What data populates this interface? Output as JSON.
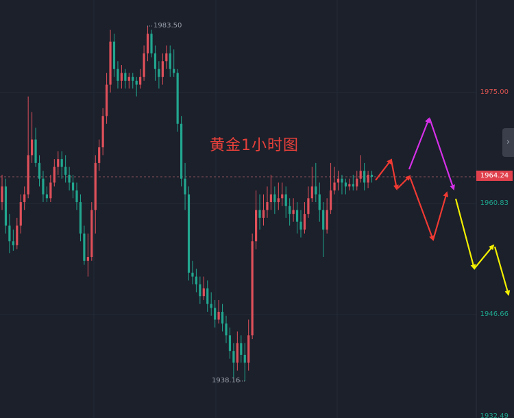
{
  "chart_data": {
    "type": "candlestick",
    "title": "黄金1小时图",
    "xlabel": "",
    "ylabel": "",
    "ylim": [
      1932.49,
      1989.0
    ],
    "grid": true,
    "y_ticks": [
      "1975.00",
      "1960.83",
      "1946.66",
      "1932.49"
    ],
    "current_price": "1964.24",
    "high_label": "1983.50",
    "low_label": "1938.16",
    "ohlc": [
      [
        1961,
        1964.5,
        1960,
        1963
      ],
      [
        1963,
        1964,
        1957,
        1958
      ],
      [
        1958,
        1959.5,
        1954.5,
        1956
      ],
      [
        1956,
        1957.5,
        1954.8,
        1955.5
      ],
      [
        1955.5,
        1959,
        1955,
        1958
      ],
      [
        1958,
        1962,
        1957,
        1961
      ],
      [
        1961,
        1963,
        1960,
        1962
      ],
      [
        1962,
        1974.5,
        1961.5,
        1967
      ],
      [
        1967,
        1972.5,
        1966,
        1969
      ],
      [
        1969,
        1970.5,
        1965.5,
        1966
      ],
      [
        1966,
        1967,
        1963,
        1964
      ],
      [
        1964,
        1965,
        1961,
        1962
      ],
      [
        1962,
        1963,
        1961,
        1961.5
      ],
      [
        1961.5,
        1964.5,
        1961,
        1963.5
      ],
      [
        1963.5,
        1966.5,
        1963,
        1965.5
      ],
      [
        1965.5,
        1967.5,
        1964.5,
        1966.5
      ],
      [
        1966.5,
        1967.5,
        1964,
        1965.5
      ],
      [
        1965.5,
        1967,
        1963.5,
        1964.5
      ],
      [
        1964.5,
        1965.5,
        1962.5,
        1963.5
      ],
      [
        1963.5,
        1964.5,
        1961.5,
        1962.5
      ],
      [
        1962.5,
        1963.5,
        1960,
        1961
      ],
      [
        1961,
        1962,
        1956,
        1957
      ],
      [
        1957,
        1958,
        1953,
        1953.5
      ],
      [
        1953.5,
        1957,
        1951.5,
        1954
      ],
      [
        1954,
        1961,
        1953.5,
        1960
      ],
      [
        1960,
        1967,
        1957,
        1966
      ],
      [
        1966,
        1969,
        1965,
        1968
      ],
      [
        1968,
        1973,
        1967,
        1972
      ],
      [
        1972,
        1977.5,
        1971,
        1976
      ],
      [
        1976,
        1983,
        1975,
        1981.5
      ],
      [
        1981.5,
        1982.5,
        1977,
        1978
      ],
      [
        1978,
        1979,
        1975.5,
        1976.5
      ],
      [
        1976.5,
        1978.5,
        1975.5,
        1977.5
      ],
      [
        1977.5,
        1978,
        1975.5,
        1976.5
      ],
      [
        1976.5,
        1977.5,
        1975.5,
        1977
      ],
      [
        1977,
        1977.5,
        1975.5,
        1976.5
      ],
      [
        1976.5,
        1977,
        1974.5,
        1976
      ],
      [
        1976,
        1978,
        1975.5,
        1977
      ],
      [
        1977,
        1981,
        1976.5,
        1980
      ],
      [
        1980,
        1983.5,
        1979,
        1982.5
      ],
      [
        1982.5,
        1983,
        1979.5,
        1980
      ],
      [
        1980,
        1981,
        1976.5,
        1978
      ],
      [
        1978,
        1979,
        1975.5,
        1977
      ],
      [
        1977,
        1980,
        1976,
        1979
      ],
      [
        1979,
        1981,
        1978,
        1980
      ],
      [
        1980,
        1981,
        1977,
        1978
      ],
      [
        1978,
        1980.5,
        1977,
        1977.5
      ],
      [
        1977.5,
        1978,
        1970,
        1971
      ],
      [
        1971,
        1972,
        1963,
        1964
      ],
      [
        1964,
        1966,
        1960,
        1962
      ],
      [
        1962,
        1963,
        1951,
        1952
      ],
      [
        1952,
        1953.5,
        1950.5,
        1951.5
      ],
      [
        1951.5,
        1952.5,
        1949.5,
        1950.5
      ],
      [
        1950.5,
        1951.5,
        1948,
        1949
      ],
      [
        1949,
        1951.5,
        1948.5,
        1950
      ],
      [
        1950,
        1951,
        1947,
        1948
      ],
      [
        1948,
        1949.5,
        1946.5,
        1947.5
      ],
      [
        1947.5,
        1948.5,
        1945,
        1946
      ],
      [
        1946,
        1948.5,
        1945.5,
        1947
      ],
      [
        1947,
        1948,
        1944.5,
        1945.5
      ],
      [
        1945.5,
        1946.5,
        1943,
        1944
      ],
      [
        1944,
        1945,
        1941,
        1942
      ],
      [
        1942,
        1943,
        1938.5,
        1940.5
      ],
      [
        1940.5,
        1944.5,
        1939.5,
        1943
      ],
      [
        1943,
        1944,
        1940.5,
        1941.5
      ],
      [
        1941.5,
        1943,
        1938.16,
        1940.5
      ],
      [
        1940.5,
        1946,
        1939.5,
        1944
      ],
      [
        1944,
        1957,
        1943.5,
        1956
      ],
      [
        1956,
        1962.5,
        1955,
        1960
      ],
      [
        1960,
        1962,
        1957.5,
        1959
      ],
      [
        1959,
        1962,
        1958,
        1960
      ],
      [
        1960,
        1963,
        1959,
        1961
      ],
      [
        1961,
        1964.5,
        1960,
        1962
      ],
      [
        1962,
        1963,
        1959.5,
        1961
      ],
      [
        1961,
        1963.5,
        1960,
        1961.5
      ],
      [
        1961.5,
        1963.5,
        1960.5,
        1962
      ],
      [
        1962,
        1963,
        1959,
        1960.5
      ],
      [
        1960.5,
        1961.5,
        1958,
        1959.5
      ],
      [
        1959.5,
        1961.5,
        1958.5,
        1960
      ],
      [
        1960,
        1961,
        1957,
        1958.5
      ],
      [
        1958.5,
        1960,
        1956.5,
        1957.5
      ],
      [
        1957.5,
        1961,
        1957,
        1959.5
      ],
      [
        1959.5,
        1963,
        1959,
        1961.5
      ],
      [
        1961.5,
        1965.5,
        1961,
        1963
      ],
      [
        1963,
        1966,
        1961,
        1962
      ],
      [
        1962,
        1963.5,
        1958.5,
        1960
      ],
      [
        1960,
        1961,
        1954,
        1957.5
      ],
      [
        1957.5,
        1961.5,
        1957,
        1960
      ],
      [
        1960,
        1966,
        1959.5,
        1962.5
      ],
      [
        1962.5,
        1965.5,
        1962,
        1963.5
      ],
      [
        1963.5,
        1965,
        1962.5,
        1964
      ],
      [
        1964,
        1964.5,
        1962,
        1963.5
      ],
      [
        1963.5,
        1964,
        1962,
        1963
      ],
      [
        1963,
        1964,
        1962.5,
        1963.3
      ],
      [
        1963.3,
        1964.5,
        1962.5,
        1963
      ],
      [
        1963,
        1965,
        1962.5,
        1964
      ],
      [
        1964,
        1967,
        1963.5,
        1965
      ],
      [
        1965,
        1966,
        1962.5,
        1963.5
      ],
      [
        1963.5,
        1965,
        1962.8,
        1964.5
      ],
      [
        1964.5,
        1965,
        1963.5,
        1964.24
      ]
    ],
    "colors": {
      "up": "#e0505a",
      "down": "#22a68f",
      "background": "#1b202b",
      "grid": "#252b37",
      "title": "#e8403a",
      "current_price": "#e0404c",
      "red_axis": "#d9534f",
      "teal_axis": "#1fa38c"
    },
    "annotations": {
      "arrow_colors": {
        "red": "#f03a33",
        "magenta": "#d630e8",
        "yellow": "#f4f000"
      }
    }
  },
  "ui": {
    "collapse_tab_icon": "chevron-right-icon",
    "collapse_tab_glyph": "›"
  }
}
